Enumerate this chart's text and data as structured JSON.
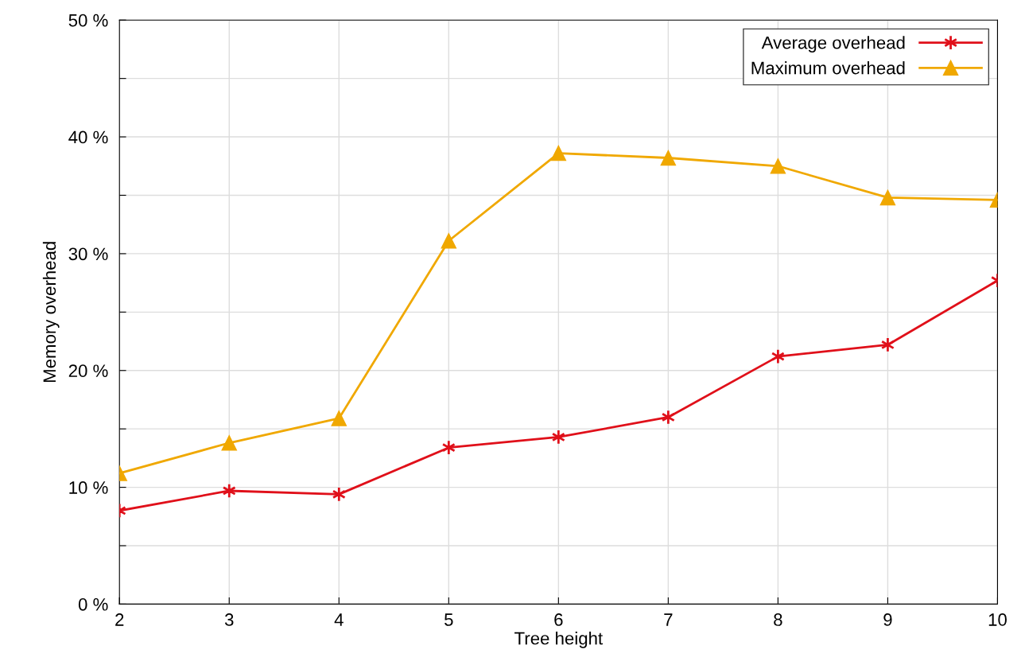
{
  "chart_data": {
    "type": "line",
    "xlabel": "Tree height",
    "ylabel": "Memory overhead",
    "x": [
      2,
      3,
      4,
      5,
      6,
      7,
      8,
      9,
      10
    ],
    "series": [
      {
        "name": "Average overhead",
        "color": "#e0101a",
        "marker": "cross",
        "values": [
          8.0,
          9.7,
          9.4,
          13.4,
          14.3,
          16.0,
          21.2,
          22.2,
          27.7
        ]
      },
      {
        "name": "Maximum overhead",
        "color": "#f0a800",
        "marker": "triangle",
        "values": [
          11.2,
          13.8,
          15.9,
          31.1,
          38.6,
          38.2,
          37.5,
          34.8,
          34.6
        ]
      }
    ],
    "xlim": [
      2,
      10
    ],
    "xticks": [
      2,
      3,
      4,
      5,
      6,
      7,
      8,
      9,
      10
    ],
    "ylim": [
      0,
      50
    ],
    "yticks": [
      {
        "value": 0,
        "label": "0 %"
      },
      {
        "value": 5,
        "label": null
      },
      {
        "value": 10,
        "label": "10 %"
      },
      {
        "value": 15,
        "label": null
      },
      {
        "value": 20,
        "label": "20 %"
      },
      {
        "value": 25,
        "label": null
      },
      {
        "value": 30,
        "label": "30 %"
      },
      {
        "value": 35,
        "label": null
      },
      {
        "value": 40,
        "label": "40 %"
      },
      {
        "value": 45,
        "label": null
      },
      {
        "value": 50,
        "label": "50 %"
      }
    ],
    "grid": true,
    "legend": "top right",
    "line_style": "solid"
  }
}
